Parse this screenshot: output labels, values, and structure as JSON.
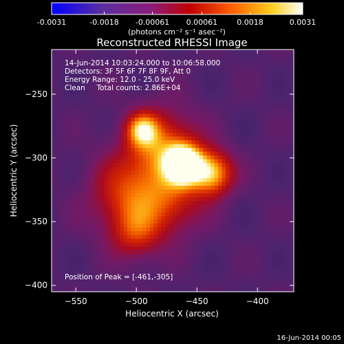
{
  "colorbar": {
    "ticks": [
      "-0.0031",
      "-0.0018",
      "-0.00061",
      "0.00061",
      "0.0018",
      "0.0031"
    ],
    "tick_values": [
      -0.0031,
      -0.0018,
      -0.00061,
      0.00061,
      0.0018,
      0.0031
    ],
    "range": [
      -0.0031,
      0.0031
    ],
    "units": "(photons cm⁻² s⁻¹ asec⁻²)",
    "colors": [
      "#0000ff",
      "#5b2ea0",
      "#8c1c78",
      "#c00000",
      "#ff6000",
      "#ffd020",
      "#ffffff"
    ]
  },
  "chart_data": {
    "type": "heatmap",
    "title": "Reconstructed RHESSI Image",
    "xlabel": "Heliocentric X (arcsec)",
    "ylabel": "Heliocentric Y (arcsec)",
    "xlim": [
      -570,
      -370
    ],
    "ylim": [
      -405,
      -215
    ],
    "xticks": [
      -550,
      -500,
      -450,
      -400
    ],
    "yticks": [
      -250,
      -300,
      -350,
      -400
    ],
    "peak": [
      -461,
      -305
    ],
    "sources": [
      {
        "x": -461,
        "y": -305,
        "sigma": 10,
        "amp": 1.0
      },
      {
        "x": -438,
        "y": -312,
        "sigma": 12,
        "amp": 0.7
      },
      {
        "x": -478,
        "y": -292,
        "sigma": 20,
        "amp": 0.5
      },
      {
        "x": -495,
        "y": -278,
        "sigma": 9,
        "amp": 0.55
      },
      {
        "x": -505,
        "y": -330,
        "sigma": 22,
        "amp": 0.45
      },
      {
        "x": -500,
        "y": -360,
        "sigma": 14,
        "amp": 0.3
      },
      {
        "x": -470,
        "y": -335,
        "sigma": 18,
        "amp": 0.3
      }
    ],
    "annotations": {
      "time": "14-Jun-2014 10:03:24.000 to 10:06:58.000",
      "detectors": "Detectors: 3F 5F 6F 7F 8F 9F, Att 0",
      "energy": "Energy Range: 12.0 - 25.0 keV",
      "clean": "Clean     Total counts: 2.86E+04",
      "peak_label": "Position of Peak = [-461,-305]"
    }
  },
  "footer": {
    "timestamp": "16-Jun-2014 00:05"
  }
}
